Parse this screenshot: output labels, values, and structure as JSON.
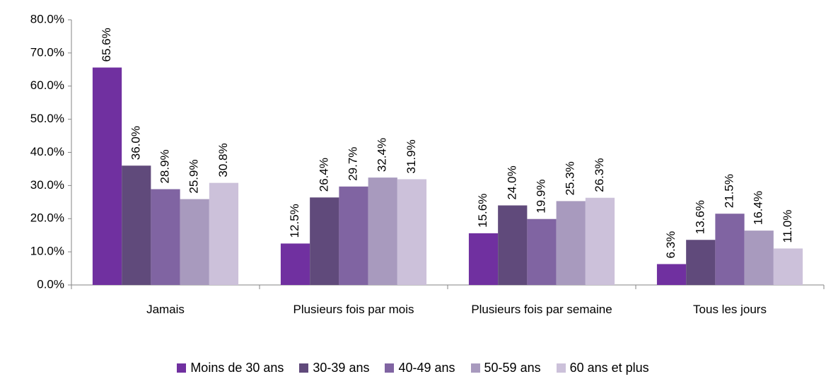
{
  "chart_data": {
    "type": "bar",
    "categories": [
      "Jamais",
      "Plusieurs fois par mois",
      "Plusieurs fois par semaine",
      "Tous les jours"
    ],
    "series": [
      {
        "name": "Moins de 30 ans",
        "color": "#7030a0",
        "values": [
          65.6,
          12.5,
          15.6,
          6.3
        ],
        "value_labels": [
          "65.6%",
          "12.5%",
          "15.6%",
          "6.3%"
        ]
      },
      {
        "name": "30-39 ans",
        "color": "#604a7b",
        "values": [
          36.0,
          26.4,
          24.0,
          13.6
        ],
        "value_labels": [
          "36.0%",
          "26.4%",
          "24.0%",
          "13.6%"
        ]
      },
      {
        "name": "40-49 ans",
        "color": "#8064a2",
        "values": [
          28.9,
          29.7,
          19.9,
          21.5
        ],
        "value_labels": [
          "28.9%",
          "29.7%",
          "19.9%",
          "21.5%"
        ]
      },
      {
        "name": "50-59 ans",
        "color": "#a89abe",
        "values": [
          25.9,
          32.4,
          25.3,
          16.4
        ],
        "value_labels": [
          "25.9%",
          "32.4%",
          "25.3%",
          "16.4%"
        ]
      },
      {
        "name": "60 ans et plus",
        "color": "#ccc1da",
        "values": [
          30.8,
          31.9,
          26.3,
          11.0
        ],
        "value_labels": [
          "30.8%",
          "31.9%",
          "26.3%",
          "11.0%"
        ]
      }
    ],
    "ylim": [
      0,
      80
    ],
    "yticks": [
      {
        "value": 0,
        "label": "0.0%"
      },
      {
        "value": 10,
        "label": "10.0%"
      },
      {
        "value": 20,
        "label": "20.0%"
      },
      {
        "value": 30,
        "label": "30.0%"
      },
      {
        "value": 40,
        "label": "40.0%"
      },
      {
        "value": 50,
        "label": "50.0%"
      },
      {
        "value": 60,
        "label": "60.0%"
      },
      {
        "value": 70,
        "label": "70.0%"
      },
      {
        "value": 80,
        "label": "80.0%"
      }
    ],
    "grid": false,
    "legend": "bottom"
  }
}
